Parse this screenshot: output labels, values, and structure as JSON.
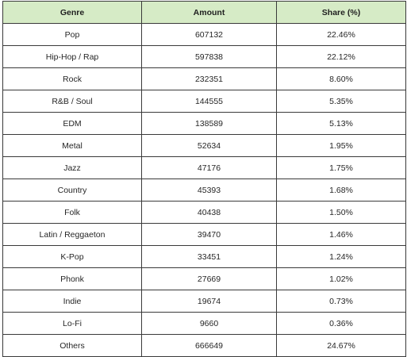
{
  "chart_data": {
    "type": "table",
    "columns": [
      "Genre",
      "Amount",
      "Share (%)"
    ],
    "rows": [
      [
        "Pop",
        "607132",
        "22.46%"
      ],
      [
        "Hip-Hop / Rap",
        "597838",
        "22.12%"
      ],
      [
        "Rock",
        "232351",
        "8.60%"
      ],
      [
        "R&B / Soul",
        "144555",
        "5.35%"
      ],
      [
        "EDM",
        "138589",
        "5.13%"
      ],
      [
        "Metal",
        "52634",
        "1.95%"
      ],
      [
        "Jazz",
        "47176",
        "1.75%"
      ],
      [
        "Country",
        "45393",
        "1.68%"
      ],
      [
        "Folk",
        "40438",
        "1.50%"
      ],
      [
        "Latin / Reggaeton",
        "39470",
        "1.46%"
      ],
      [
        "K-Pop",
        "33451",
        "1.24%"
      ],
      [
        "Phonk",
        "27669",
        "1.02%"
      ],
      [
        "Indie",
        "19674",
        "0.73%"
      ],
      [
        "Lo-Fi",
        "9660",
        "0.36%"
      ],
      [
        "Others",
        "666649",
        "24.67%"
      ]
    ]
  },
  "colors": {
    "header_bg": "#d6ebc6",
    "border": "#3a3a3a",
    "text": "#262626"
  }
}
